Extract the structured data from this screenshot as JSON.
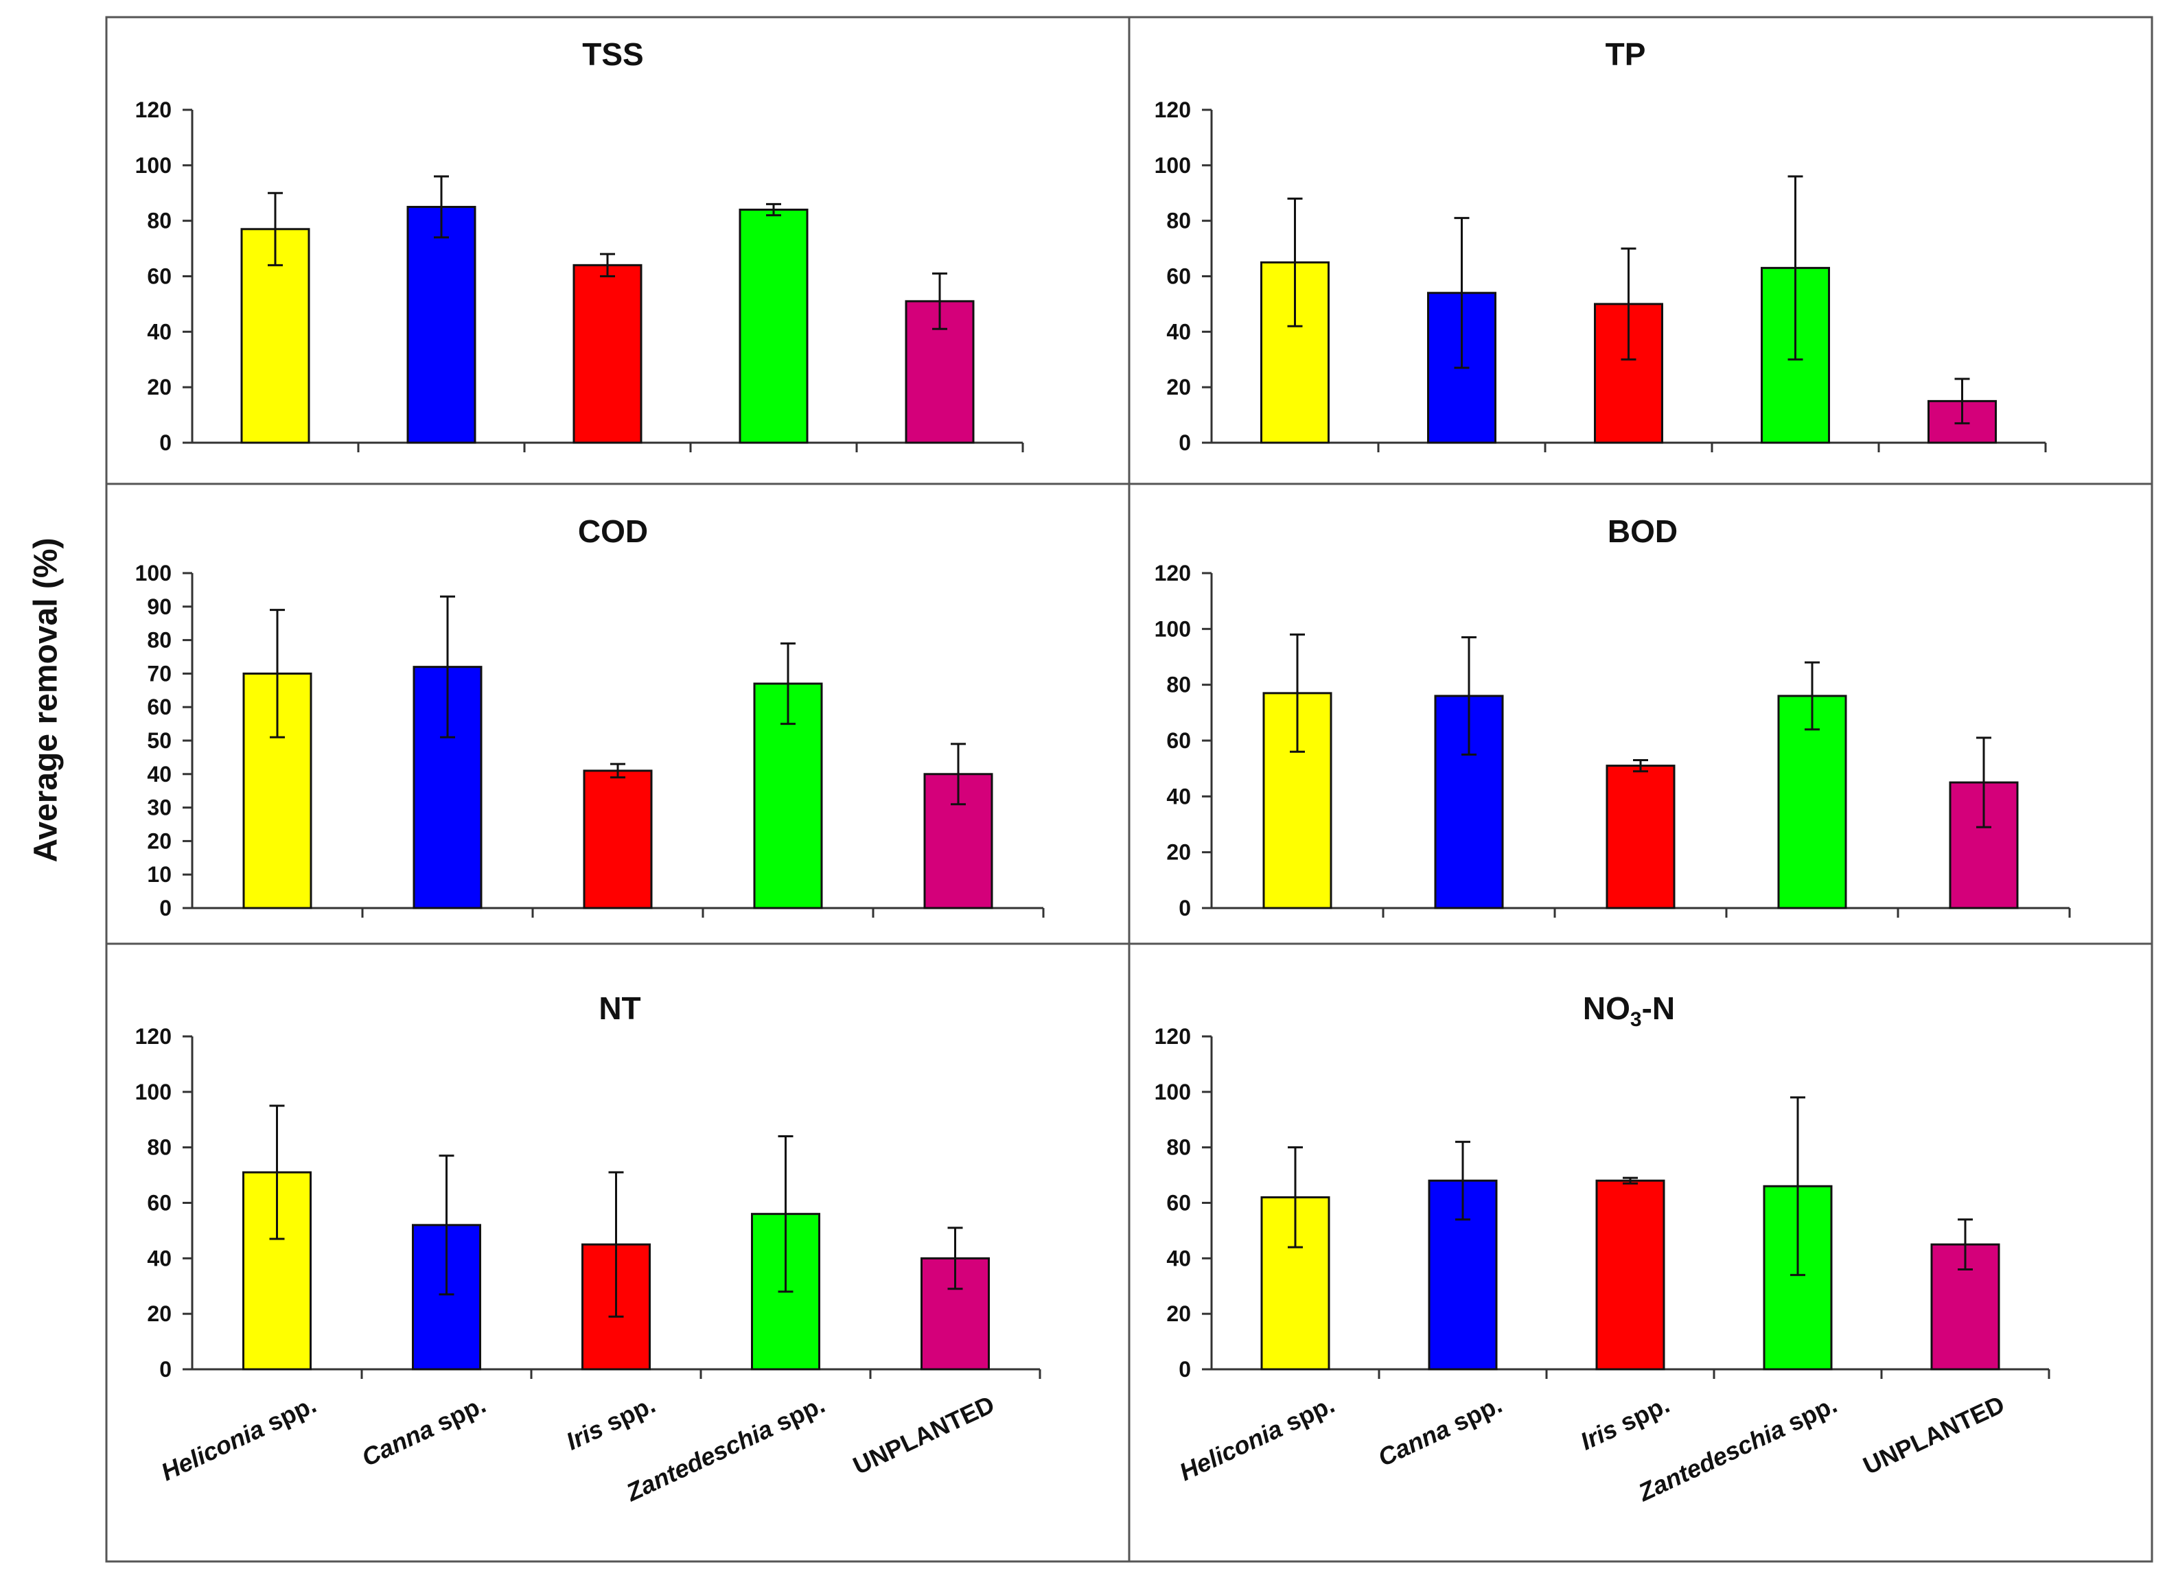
{
  "y_axis_title": "Average removal (%)",
  "colors": {
    "heliconia": "#ffff00",
    "canna": "#0000ff",
    "iris": "#ff0000",
    "zantedeschia": "#00ff00",
    "unplanted": "#d4007a",
    "frame": "#555555",
    "axis": "#333333"
  },
  "categories": [
    {
      "italic": "Heliconia",
      "suffix": " spp."
    },
    {
      "italic": "Canna",
      "suffix": " spp."
    },
    {
      "italic": "Iris",
      "suffix": " spp."
    },
    {
      "italic": "Zantedeschia",
      "suffix": " spp."
    },
    {
      "italic": "",
      "suffix": "UNPLANTED"
    }
  ],
  "chart_data": [
    {
      "type": "bar",
      "title": "TSS",
      "ylabel": "Average removal (%)",
      "ylim": [
        0,
        120
      ],
      "yticks": [
        "0",
        "20",
        "40",
        "60",
        "80",
        "100",
        "120"
      ],
      "values": [
        77,
        85,
        64,
        84,
        51
      ],
      "errors": [
        13,
        11,
        4,
        2,
        10
      ]
    },
    {
      "type": "bar",
      "title": "TP",
      "ylabel": "Average removal (%)",
      "ylim": [
        0,
        120
      ],
      "yticks": [
        "0",
        "20",
        "40",
        "60",
        "80",
        "100",
        "120"
      ],
      "values": [
        65,
        54,
        50,
        63,
        15
      ],
      "errors": [
        23,
        27,
        20,
        33,
        8
      ]
    },
    {
      "type": "bar",
      "title": "COD",
      "ylabel": "Average removal (%)",
      "ylim": [
        0,
        100
      ],
      "yticks": [
        "0",
        "10",
        "20",
        "30",
        "40",
        "50",
        "60",
        "70",
        "80",
        "90",
        "100"
      ],
      "values": [
        70,
        72,
        41,
        67,
        40
      ],
      "errors": [
        19,
        21,
        2,
        12,
        9
      ]
    },
    {
      "type": "bar",
      "title": "BOD",
      "ylabel": "Average removal (%)",
      "ylim": [
        0,
        120
      ],
      "yticks": [
        "0",
        "20",
        "40",
        "60",
        "80",
        "100",
        "120"
      ],
      "values": [
        77,
        76,
        51,
        76,
        45
      ],
      "errors": [
        21,
        21,
        2,
        12,
        16
      ]
    },
    {
      "type": "bar",
      "title": "NT",
      "ylabel": "Average removal (%)",
      "ylim": [
        0,
        120
      ],
      "yticks": [
        "0",
        "20",
        "40",
        "60",
        "80",
        "100",
        "120"
      ],
      "values": [
        71,
        52,
        45,
        56,
        40
      ],
      "errors": [
        24,
        25,
        26,
        28,
        11
      ]
    },
    {
      "type": "bar",
      "title": "NO",
      "title_sub": "3",
      "title_suffix": "-N",
      "ylabel": "Average removal (%)",
      "ylim": [
        0,
        120
      ],
      "yticks": [
        "0",
        "20",
        "40",
        "60",
        "80",
        "100",
        "120"
      ],
      "values": [
        62,
        68,
        68,
        66,
        45
      ],
      "errors": [
        18,
        14,
        1,
        32,
        9
      ]
    }
  ]
}
